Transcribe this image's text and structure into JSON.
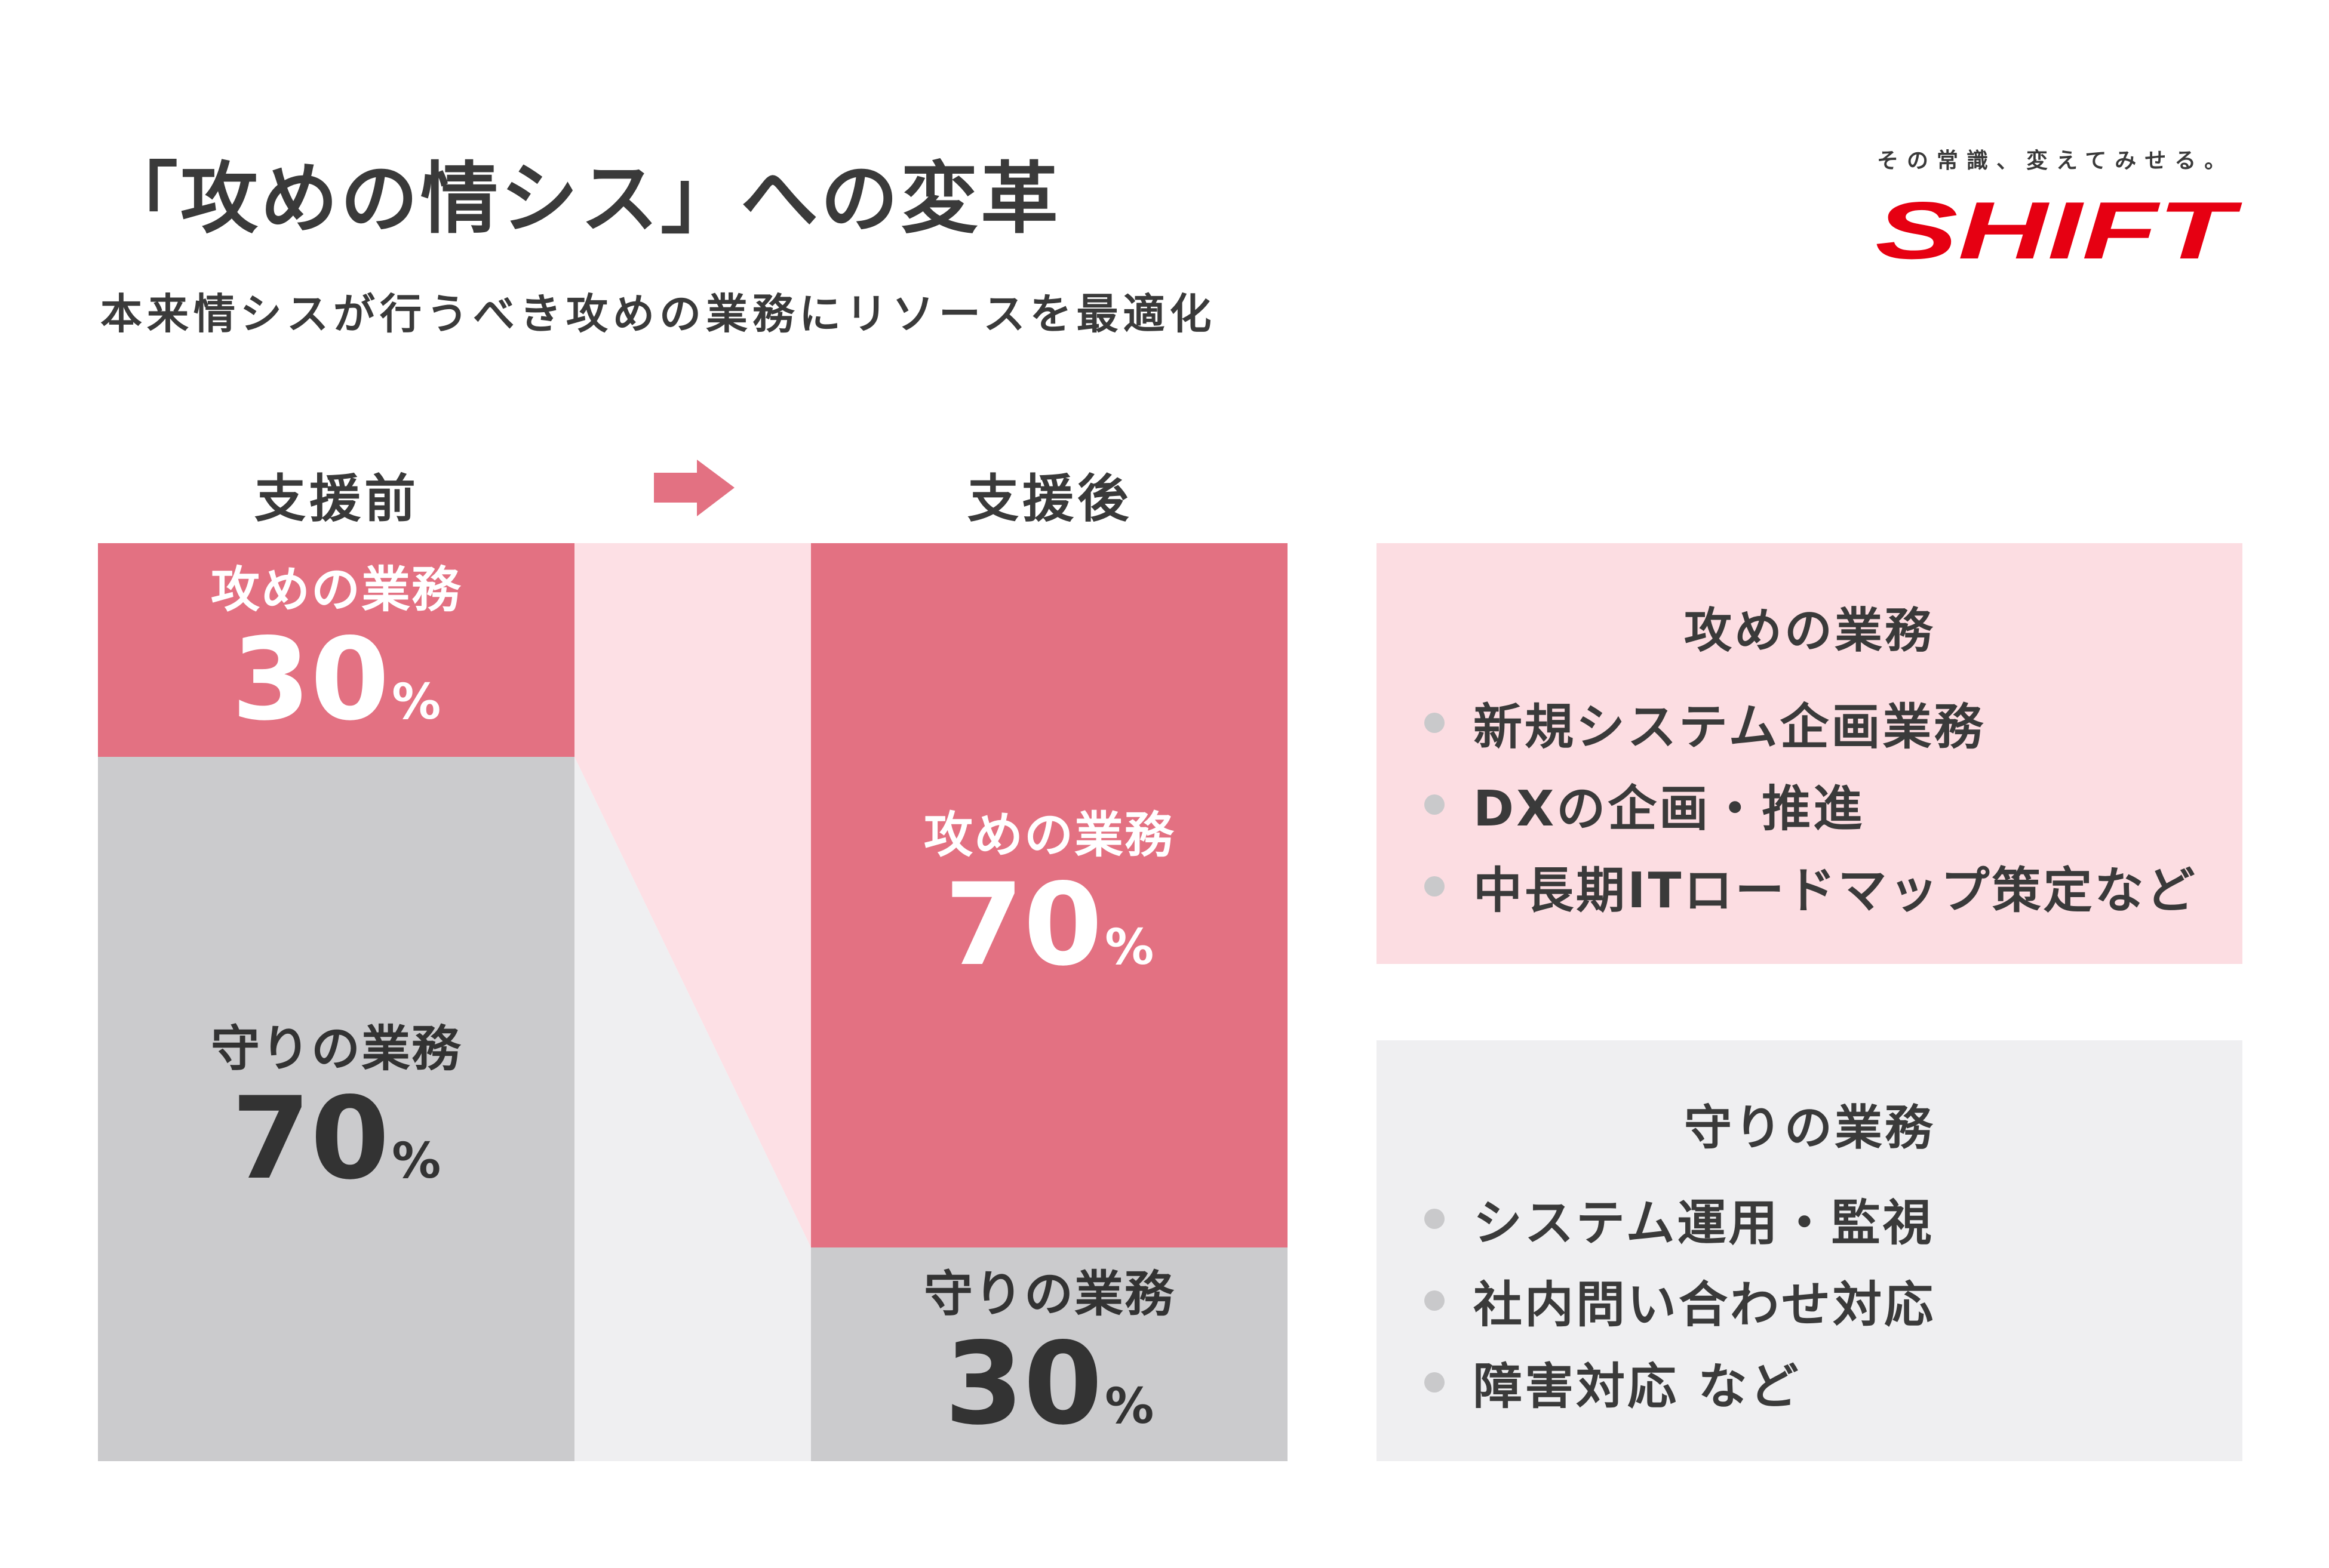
{
  "header": {
    "title": "「攻めの情シス」への変革",
    "subtitle": "本来情シスが行うべき攻めの業務にリソースを最適化"
  },
  "brand": {
    "tagline": "その常識、変えてみせる。",
    "logo_text": "SHIFT",
    "color": "#e60012"
  },
  "colors": {
    "offense": "#e37182",
    "defense": "#cbcbcd",
    "offense_panel": "#fcdde2",
    "defense_panel": "#efeff1"
  },
  "before": {
    "heading": "支援前",
    "offense": {
      "label": "攻めの業務",
      "value": "30",
      "unit": "%"
    },
    "defense": {
      "label": "守りの業務",
      "value": "70",
      "unit": "%"
    }
  },
  "after": {
    "heading": "支援後",
    "offense": {
      "label": "攻めの業務",
      "value": "70",
      "unit": "%"
    },
    "defense": {
      "label": "守りの業務",
      "value": "30",
      "unit": "%"
    }
  },
  "panels": {
    "offense": {
      "title": "攻めの業務",
      "items": [
        "新規システム企画業務",
        "DXの企画・推進",
        "中長期ITロードマップ策定など"
      ]
    },
    "defense": {
      "title": "守りの業務",
      "items": [
        "システム運用・監視",
        "社内問い合わせ対応",
        "障害対応 など"
      ]
    }
  }
}
